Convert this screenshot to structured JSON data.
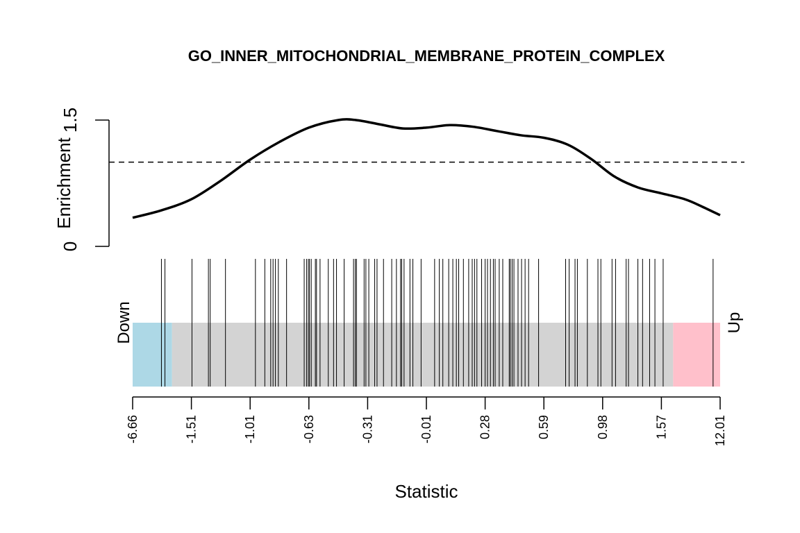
{
  "chart_data": {
    "type": "barcode",
    "title": "GO_INNER_MITOCHONDRIAL_MEMBRANE_PROTEIN_COMPLEX",
    "xlabel": "Statistic",
    "ylabel": "Enrichment",
    "y_ticks": [
      "0",
      "1.5"
    ],
    "ylim": [
      0,
      1.5
    ],
    "reference_line": 1,
    "x_tick_labels": [
      "-6.66",
      "-1.51",
      "-1.01",
      "-0.63",
      "-0.31",
      "-0.01",
      "0.28",
      "0.59",
      "0.98",
      "1.57",
      "12.01"
    ],
    "xlim_rank": [
      0,
      1
    ],
    "regions": {
      "down_label": "Down",
      "up_label": "Up",
      "down_end": 0.067,
      "up_start": 0.92,
      "down_color": "#ADD8E6",
      "middle_color": "#D3D3D3",
      "up_color": "#FFC0CB"
    },
    "enrichment_curve": {
      "x": [
        0,
        0.05,
        0.1,
        0.15,
        0.2,
        0.25,
        0.3,
        0.35,
        0.38,
        0.42,
        0.46,
        0.5,
        0.54,
        0.58,
        0.62,
        0.66,
        0.7,
        0.74,
        0.78,
        0.82,
        0.86,
        0.9,
        0.94,
        0.97,
        1.0
      ],
      "y": [
        0.34,
        0.43,
        0.56,
        0.78,
        1.03,
        1.24,
        1.41,
        1.5,
        1.5,
        1.45,
        1.4,
        1.41,
        1.44,
        1.42,
        1.37,
        1.32,
        1.29,
        1.21,
        1.04,
        0.83,
        0.7,
        0.63,
        0.56,
        0.47,
        0.37
      ]
    },
    "gene_positions": [
      0.049,
      0.055,
      0.101,
      0.129,
      0.132,
      0.158,
      0.209,
      0.225,
      0.235,
      0.239,
      0.243,
      0.248,
      0.262,
      0.292,
      0.296,
      0.299,
      0.301,
      0.304,
      0.311,
      0.313,
      0.319,
      0.333,
      0.342,
      0.347,
      0.36,
      0.376,
      0.379,
      0.381,
      0.394,
      0.397,
      0.402,
      0.412,
      0.416,
      0.427,
      0.441,
      0.449,
      0.456,
      0.458,
      0.462,
      0.472,
      0.477,
      0.491,
      0.514,
      0.522,
      0.528,
      0.538,
      0.545,
      0.551,
      0.555,
      0.563,
      0.572,
      0.578,
      0.582,
      0.586,
      0.594,
      0.6,
      0.604,
      0.609,
      0.614,
      0.617,
      0.624,
      0.63,
      0.641,
      0.643,
      0.646,
      0.649,
      0.656,
      0.662,
      0.668,
      0.674,
      0.691,
      0.737,
      0.743,
      0.753,
      0.757,
      0.774,
      0.792,
      0.797,
      0.816,
      0.822,
      0.84,
      0.844,
      0.86,
      0.868,
      0.88,
      0.889,
      0.903,
      0.988
    ]
  }
}
